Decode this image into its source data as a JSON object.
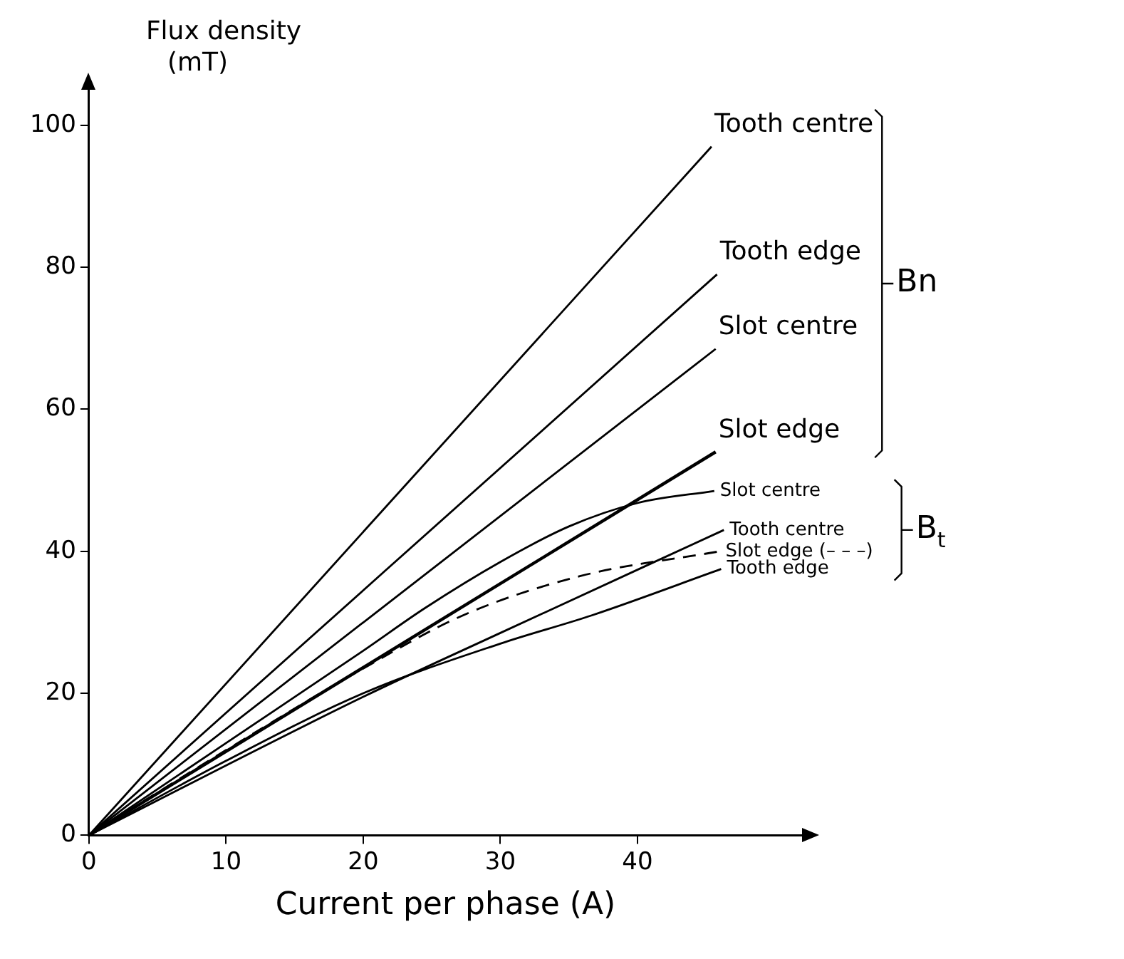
{
  "chart_data": {
    "type": "line",
    "xlabel": "Current per phase (A)",
    "ylabel": "Flux density\n(mT)",
    "xlim": [
      0,
      52
    ],
    "ylim": [
      0,
      105
    ],
    "xticks": [
      0,
      10,
      20,
      30,
      40
    ],
    "yticks": [
      0,
      20,
      40,
      60,
      80,
      100
    ],
    "grid": false,
    "legend": false,
    "marker": "none",
    "annotations": [
      "Bn",
      "B$_{t}$"
    ],
    "series": [
      {
        "name": "Tooth centre",
        "color": "#000000",
        "x": [
          0,
          45.4
        ],
        "values": [
          0,
          97
        ]
      },
      {
        "name": "Tooth edge",
        "color": "#000000",
        "x": [
          0,
          45.8
        ],
        "values": [
          0,
          79
        ]
      },
      {
        "name": "Slot centre",
        "color": "#000000",
        "x": [
          0,
          45.7
        ],
        "values": [
          0,
          68.5
        ]
      },
      {
        "name": "Slot edge",
        "color": "#000000",
        "x": [
          0,
          45.7
        ],
        "values": [
          0,
          54
        ]
      },
      {
        "name": "Slot centre",
        "color": "#000000",
        "x": [
          0,
          10,
          20,
          24.5,
          30,
          35,
          40,
          45.6
        ],
        "values": [
          0,
          13,
          26,
          32,
          38.5,
          43.5,
          46.8,
          48.5
        ]
      },
      {
        "name": "Tooth centre",
        "color": "#000000",
        "x": [
          0,
          20,
          30,
          46.3
        ],
        "values": [
          0,
          19.5,
          28.5,
          43
        ]
      },
      {
        "name": "Slot edge (– – –)",
        "color": "#000000",
        "line_style": "dashed",
        "x": [
          0,
          10,
          20,
          27.3,
          35.8,
          46
        ],
        "values": [
          0,
          12,
          23.5,
          31,
          36.5,
          40
        ]
      },
      {
        "name": "Tooth edge",
        "color": "#000000",
        "x": [
          0,
          10,
          20,
          30,
          36.7,
          46.1
        ],
        "values": [
          0,
          10.5,
          20,
          27,
          31,
          37.5
        ]
      }
    ]
  }
}
